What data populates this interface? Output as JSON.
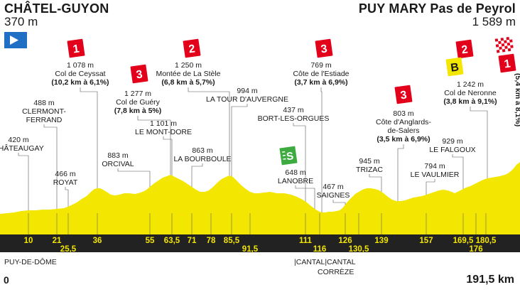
{
  "stage": {
    "start": {
      "name": "CHÂTEL-GUYON",
      "altitude": "370 m"
    },
    "finish": {
      "name": "PUY MARY Pas de Peyrol",
      "altitude": "1 589 m"
    },
    "distance_start": "0",
    "distance_total": "191,5 km"
  },
  "departments": {
    "puy_de_dome": "PUY-DE-DÔME",
    "cantal_1": "CANTAL",
    "correze": "CORRÈZE",
    "cantal_2": "CANTAL"
  },
  "colors": {
    "profile_fill": "#f3e600",
    "km_bar": "#222222",
    "km_text": "#f3e600",
    "climb_badge": "#e2001a",
    "bonus_badge": "#f3e600",
    "sprint_badge": "#3dab3f",
    "start_flag": "#1f6fc5"
  },
  "icons": [
    "start-flag-icon",
    "climb-cat-1-icon",
    "climb-cat-2-icon",
    "climb-cat-3-icon",
    "sprint-icon",
    "bonus-b-icon",
    "finish-flag-icon"
  ],
  "km_markers": [
    "10",
    "21",
    "25,5",
    "36",
    "55",
    "63,5",
    "71",
    "78",
    "85,5",
    "91,5",
    "111",
    "116",
    "126",
    "130,5",
    "139",
    "157",
    "169,5",
    "176",
    "180,5"
  ],
  "waypoints": [
    {
      "alt": "420 m",
      "name": "CHÂTEAUGAY"
    },
    {
      "alt": "488 m",
      "name": "CLERMONT-\nFERRAND"
    },
    {
      "alt": "466 m",
      "name": "ROYAT"
    },
    {
      "alt": "883 m",
      "name": "ORCIVAL"
    },
    {
      "alt": "1 101 m",
      "name": "LE MONT-DORE"
    },
    {
      "alt": "863 m",
      "name": "LA BOURBOULE"
    },
    {
      "alt": "994 m",
      "name": "LA TOUR D'AUVERGNE"
    },
    {
      "alt": "437 m",
      "name": "BORT-LES-ORGUES"
    },
    {
      "alt": "648 m",
      "name": "LANOBRE"
    },
    {
      "alt": "467 m",
      "name": "SAIGNES"
    },
    {
      "alt": "945 m",
      "name": "TRIZAC"
    },
    {
      "alt": "794 m",
      "name": "LE VAULMIER"
    },
    {
      "alt": "929 m",
      "name": "LE FALGOUX"
    }
  ],
  "climbs": [
    {
      "cat": "1",
      "alt": "1 078 m",
      "name": "Col de Ceyssat",
      "detail": "(10,2 km à 6,1%)"
    },
    {
      "cat": "3",
      "alt": "1 277 m",
      "name": "Col de Guéry",
      "detail": "(7,8 km à 5%)"
    },
    {
      "cat": "2",
      "alt": "1 250 m",
      "name": "Montée de La Stèle",
      "detail": "(6,8 km à 5,7%)"
    },
    {
      "cat": "3",
      "alt": "769 m",
      "name": "Côte de l'Estiade",
      "detail": "(3,7 km à 6,9%)"
    },
    {
      "cat": "3",
      "alt": "803 m",
      "name": "Côte d'Anglards-\nde-Salers",
      "detail": "(3,5 km à 6,9%)"
    },
    {
      "cat": "2",
      "alt": "1 242 m",
      "name": "Col de Neronne",
      "detail": "(3,8 km à 9,1%)"
    },
    {
      "cat": "1",
      "detail": "(5,4 km à 8,1%)"
    }
  ],
  "sprint_label": "S",
  "bonus_label": "B"
}
